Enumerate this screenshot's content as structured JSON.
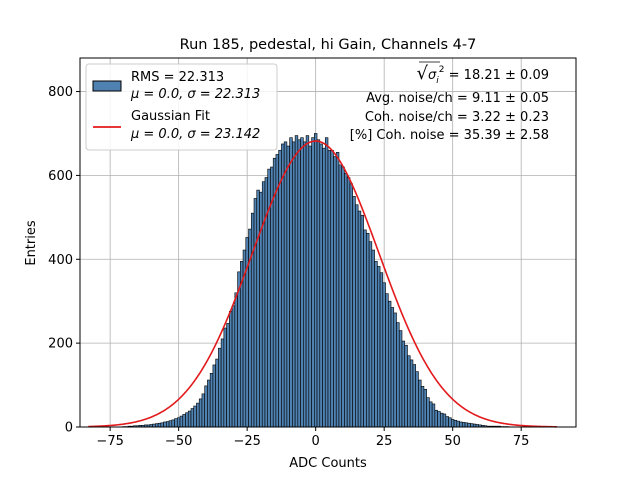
{
  "chart_data": {
    "type": "bar",
    "title": "Run 185, pedestal, hi Gain, Channels 4-7",
    "xlabel": "ADC Counts",
    "ylabel": "Entries",
    "xlim": [
      -86,
      95
    ],
    "ylim": [
      0,
      880
    ],
    "grid": true,
    "x_ticks": [
      -75,
      -50,
      -25,
      0,
      25,
      50,
      75
    ],
    "y_ticks": [
      0,
      200,
      400,
      600,
      800
    ],
    "x_tick_labels": [
      "−75",
      "−50",
      "−25",
      "0",
      "25",
      "50",
      "75"
    ],
    "y_tick_labels": [
      "0",
      "200",
      "400",
      "600",
      "800"
    ],
    "histogram": {
      "name": "RMS = 22.313",
      "bin_width": 1,
      "x": [
        -70,
        -69,
        -68,
        -67,
        -66,
        -65,
        -64,
        -63,
        -62,
        -61,
        -60,
        -59,
        -58,
        -57,
        -56,
        -55,
        -54,
        -53,
        -52,
        -51,
        -50,
        -49,
        -48,
        -47,
        -46,
        -45,
        -44,
        -43,
        -42,
        -41,
        -40,
        -39,
        -38,
        -37,
        -36,
        -35,
        -34,
        -33,
        -32,
        -31,
        -30,
        -29,
        -28,
        -27,
        -26,
        -25,
        -24,
        -23,
        -22,
        -21,
        -20,
        -19,
        -18,
        -17,
        -16,
        -15,
        -14,
        -13,
        -12,
        -11,
        -10,
        -9,
        -8,
        -7,
        -6,
        -5,
        -4,
        -3,
        -2,
        -1,
        0,
        1,
        2,
        3,
        4,
        5,
        6,
        7,
        8,
        9,
        10,
        11,
        12,
        13,
        14,
        15,
        16,
        17,
        18,
        19,
        20,
        21,
        22,
        23,
        24,
        25,
        26,
        27,
        28,
        29,
        30,
        31,
        32,
        33,
        34,
        35,
        36,
        37,
        38,
        39,
        40,
        41,
        42,
        43,
        44,
        45,
        46,
        47,
        48,
        49,
        50,
        51,
        52,
        53,
        54,
        55,
        56,
        57,
        58,
        59,
        60,
        61,
        62,
        63,
        64,
        65,
        66,
        67,
        68,
        69,
        70
      ],
      "values": [
        1,
        1,
        2,
        2,
        3,
        3,
        4,
        4,
        5,
        5,
        6,
        7,
        8,
        9,
        10,
        12,
        13,
        15,
        17,
        20,
        22,
        26,
        30,
        34,
        38,
        44,
        50,
        57,
        67,
        79,
        98,
        112,
        128,
        148,
        162,
        188,
        210,
        236,
        247,
        276,
        289,
        320,
        370,
        395,
        422,
        452,
        472,
        510,
        545,
        565,
        560,
        585,
        595,
        615,
        620,
        641,
        650,
        660,
        675,
        680,
        670,
        690,
        680,
        695,
        685,
        690,
        680,
        695,
        670,
        690,
        700,
        685,
        675,
        665,
        690,
        660,
        660,
        645,
        655,
        625,
        620,
        605,
        595,
        580,
        550,
        530,
        515,
        505,
        470,
        462,
        442,
        422,
        395,
        383,
        368,
        344,
        318,
        300,
        285,
        272,
        249,
        230,
        205,
        195,
        170,
        160,
        149,
        132,
        112,
        97,
        90,
        70,
        60,
        55,
        40,
        37,
        33,
        31,
        25,
        22,
        18,
        16,
        14,
        12,
        11,
        10,
        9,
        8,
        7,
        6,
        5,
        4,
        3,
        2,
        2,
        2,
        2,
        2,
        1,
        1,
        1
      ]
    },
    "fit": {
      "name": "Gaussian Fit",
      "mu": 0.0,
      "sigma": 23.142,
      "amplitude": 682,
      "x_range": [
        -83,
        88
      ]
    },
    "legend": {
      "placement": "top-left",
      "entries": [
        {
          "line1": "RMS = 22.313",
          "line2": "μ = 0.0, σ = 22.313"
        },
        {
          "line1": "Gaussian Fit",
          "line2": "μ = 0.0, σ = 23.142"
        }
      ]
    },
    "annotations": [
      {
        "prefix": "√",
        "symbol": "σ",
        "sub": "i",
        "sup": "2",
        "text": " = 18.21 ± 0.09"
      },
      {
        "text": "Avg. noise/ch = 9.11 ± 0.05"
      },
      {
        "text": "Coh. noise/ch = 3.22 ± 0.23"
      },
      {
        "text": "[%] Coh. noise = 35.39 ± 2.58"
      }
    ],
    "colors": {
      "bar_fill": "#4f81b1",
      "bar_edge": "#000000",
      "fit_line": "#e31a1c",
      "grid": "#b0b0b0"
    }
  }
}
